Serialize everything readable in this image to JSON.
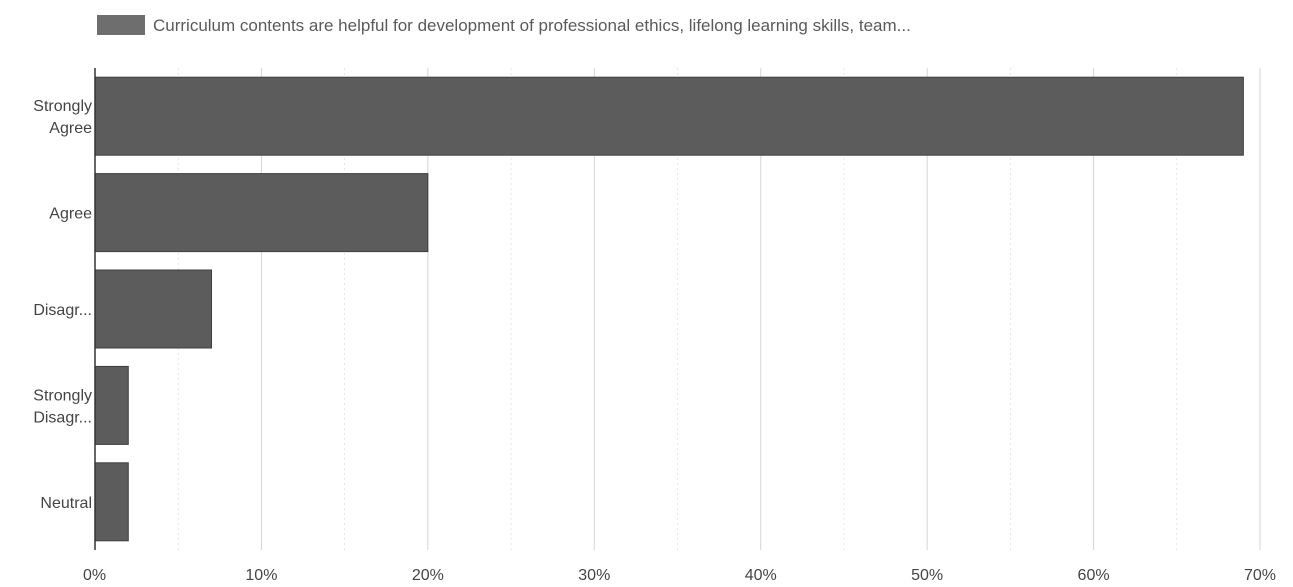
{
  "chart_data": {
    "type": "bar",
    "orientation": "horizontal",
    "categories": [
      [
        "Strongly",
        "Agree"
      ],
      [
        "Agree"
      ],
      [
        "Disagr..."
      ],
      [
        "Strongly",
        "Disagr..."
      ],
      [
        "Neutral"
      ]
    ],
    "series": [
      {
        "name": "Curriculum contents are helpful for development of professional ethics, lifelong learning skills, team...",
        "values": [
          69,
          20,
          7,
          2,
          2
        ]
      }
    ],
    "xlim": [
      0,
      70
    ],
    "xticks": [
      0,
      10,
      20,
      30,
      40,
      50,
      60,
      70
    ],
    "xtick_labels": [
      "0%",
      "10%",
      "20%",
      "30%",
      "40%",
      "50%",
      "60%",
      "70%"
    ],
    "grid": true,
    "legend_position": "top"
  },
  "colors": {
    "bar": "#5c5c5c",
    "bar_edge": "#3f3f3f",
    "grid": "#d6d6d6",
    "axis": "#333333",
    "legend_swatch": "#6e6e6e"
  }
}
